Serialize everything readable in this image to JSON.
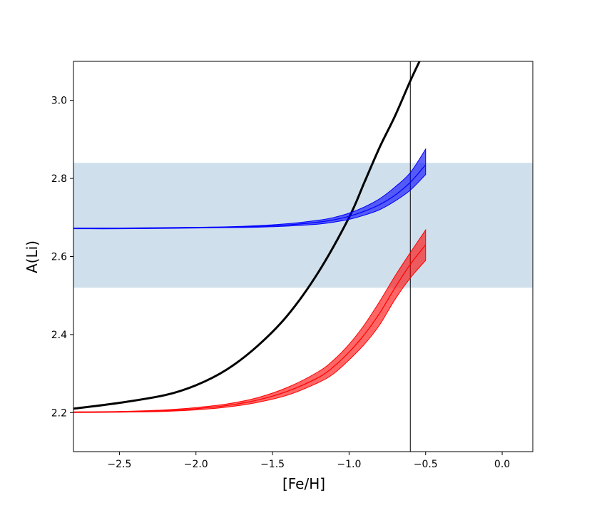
{
  "chart_data": {
    "type": "line",
    "title": "",
    "xlabel": "[Fe/H]",
    "ylabel": "A(Li)",
    "xlim": [
      -2.8,
      0.2
    ],
    "ylim": [
      2.1,
      3.1
    ],
    "xticks": [
      -2.5,
      -2.0,
      -1.5,
      -1.0,
      -0.5,
      0.0
    ],
    "xtick_labels": [
      "−2.5",
      "−2.0",
      "−1.5",
      "−1.0",
      "−0.5",
      "0.0"
    ],
    "yticks": [
      2.2,
      2.4,
      2.6,
      2.8,
      3.0
    ],
    "ytick_labels": [
      "2.2",
      "2.4",
      "2.6",
      "2.8",
      "3.0"
    ],
    "grid": false,
    "legend": "none",
    "shaded_band": {
      "y_range": [
        2.52,
        2.84
      ],
      "color": "#cfe0ec"
    },
    "vertical_line": {
      "x": -0.6,
      "color": "#000000"
    },
    "series": [
      {
        "color": "#000000",
        "style": "line",
        "points": [
          [
            -2.8,
            2.21
          ],
          [
            -2.5,
            2.225
          ],
          [
            -2.2,
            2.245
          ],
          [
            -2.0,
            2.27
          ],
          [
            -1.8,
            2.31
          ],
          [
            -1.6,
            2.37
          ],
          [
            -1.4,
            2.45
          ],
          [
            -1.2,
            2.56
          ],
          [
            -1.0,
            2.7
          ],
          [
            -0.9,
            2.79
          ],
          [
            -0.8,
            2.88
          ],
          [
            -0.7,
            2.96
          ],
          [
            -0.6,
            3.05
          ],
          [
            -0.54,
            3.1
          ]
        ]
      },
      {
        "color": "#0000ff",
        "style": "band",
        "x": [
          -2.8,
          -2.5,
          -2.2,
          -2.0,
          -1.8,
          -1.6,
          -1.4,
          -1.2,
          -1.1,
          -1.0,
          -0.9,
          -0.8,
          -0.7,
          -0.6,
          -0.5
        ],
        "center": [
          2.672,
          2.672,
          2.673,
          2.674,
          2.675,
          2.677,
          2.681,
          2.688,
          2.694,
          2.703,
          2.716,
          2.733,
          2.757,
          2.79,
          2.835
        ],
        "lower": [
          2.671,
          2.671,
          2.672,
          2.673,
          2.674,
          2.675,
          2.678,
          2.683,
          2.688,
          2.695,
          2.706,
          2.72,
          2.742,
          2.77,
          2.81
        ],
        "upper": [
          2.673,
          2.673,
          2.674,
          2.675,
          2.676,
          2.679,
          2.684,
          2.693,
          2.7,
          2.711,
          2.727,
          2.748,
          2.778,
          2.815,
          2.875
        ]
      },
      {
        "color": "#ff0000",
        "style": "band",
        "x": [
          -2.8,
          -2.5,
          -2.2,
          -2.0,
          -1.8,
          -1.6,
          -1.4,
          -1.2,
          -1.1,
          -1.0,
          -0.9,
          -0.8,
          -0.7,
          -0.6,
          -0.5
        ],
        "center": [
          2.201,
          2.202,
          2.205,
          2.21,
          2.218,
          2.232,
          2.255,
          2.29,
          2.318,
          2.355,
          2.4,
          2.455,
          2.52,
          2.58,
          2.63
        ],
        "lower": [
          2.2,
          2.201,
          2.203,
          2.207,
          2.214,
          2.226,
          2.245,
          2.277,
          2.3,
          2.335,
          2.375,
          2.425,
          2.49,
          2.545,
          2.59
        ],
        "upper": [
          2.202,
          2.203,
          2.207,
          2.213,
          2.222,
          2.238,
          2.265,
          2.305,
          2.335,
          2.375,
          2.425,
          2.485,
          2.55,
          2.61,
          2.668
        ]
      }
    ]
  }
}
